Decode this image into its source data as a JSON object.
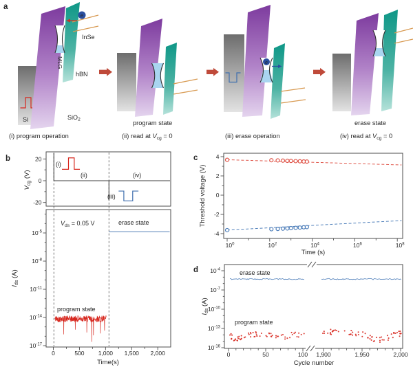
{
  "panel_labels": {
    "a": "a",
    "b": "b",
    "c": "c",
    "d": "d"
  },
  "panel_a": {
    "materials": {
      "si": "Si",
      "sio2_base": "SiO",
      "sio2_sub": "2",
      "mlg": "MLG",
      "hbn": "hBN",
      "inse": "InSe",
      "electron": "e"
    },
    "captions": {
      "i": "(i) program operation",
      "ii_prefix": "(ii) read at ",
      "iii": "(iii) erase operation",
      "iv_prefix": "(iv) read at ",
      "v_symbol": "V",
      "v_subscript": "cg",
      "read_suffix": " = 0"
    },
    "state_labels": {
      "program": "program state",
      "erase": "erase state"
    },
    "colors": {
      "program_red": "#d7261d",
      "erase_blue": "#3f6fae",
      "arrow_red": "#bf4a3a",
      "slab_purple_top": "#7d3b9e",
      "slab_purple_bottom": "#e4d4ee",
      "slab_teal_top": "#0f9787",
      "slab_teal_bottom": "#b5e2da",
      "slab_gray_top": "#6d6d6d",
      "slab_gray_bottom": "#e3e3e3",
      "cone_fill_blue": "#a9d5f0",
      "inse_line_orange": "#d89a52",
      "electron_blue": "#2a4fa0"
    }
  },
  "chart_data": [
    {
      "panel": "b",
      "subplot": "gate_voltage_waveform",
      "type": "line",
      "ylabel": {
        "symbol": "V",
        "subscript": "cg",
        "unit": " (V)"
      },
      "yticks": {
        "values": [
          20,
          0,
          -20
        ],
        "labels": [
          "20",
          "0",
          "-20"
        ],
        "minor": [
          10,
          -10
        ]
      },
      "ylim": [
        -23.5,
        26.5
      ],
      "xlim": [
        -140,
        2255
      ],
      "pulse_labels": {
        "i": "(i)",
        "ii": "(ii)",
        "iii": "(iii)",
        "iv": "(iv)"
      },
      "waveform": {
        "baseline_V": 0,
        "program_pulse": {
          "t_start": 165,
          "t_rise": 290,
          "t_fall": 400,
          "t_end": 508,
          "base_V": 10.5,
          "peak_V": 21,
          "color": "#d7261d"
        },
        "erase_pulse": {
          "t_start": 1250,
          "t_fall": 1350,
          "t_rise": 1520,
          "t_end": 1630,
          "base_V": -9.5,
          "peak_V": -18.5,
          "color": "#3f6fae"
        },
        "step_edges_t": [
          10,
          1065
        ]
      },
      "dashed_guides_t": [
        10,
        1065
      ]
    },
    {
      "panel": "b",
      "subplot": "retention_current",
      "type": "line",
      "ylabel": {
        "symbol": "I",
        "subscript": "ds",
        "unit": " (A)"
      },
      "ytick_exponents": {
        "major": [
          -5,
          -8,
          -11,
          -14,
          -17
        ],
        "minor": [
          -3,
          -4,
          -6,
          -7,
          -9,
          -10,
          -12,
          -13,
          -15,
          -16
        ]
      },
      "xticks": {
        "values": [
          0,
          500,
          1000,
          1500,
          2000
        ],
        "labels": [
          "0",
          "500",
          "1,000",
          "1,500",
          "2,000"
        ],
        "minor_values": [
          250,
          750,
          1250,
          1750
        ]
      },
      "xlabel": "Time(s)",
      "bias_annotation": {
        "symbol": "V",
        "subscript": "ds",
        "text": " = 0.05 V"
      },
      "series": [
        {
          "name": "program state",
          "color": "#d7261d",
          "t_start": 30,
          "t_end": 1015,
          "log10_mean": -14.15,
          "log10_jitter": 0.35,
          "spikes": [
            [
              200,
              -15.8
            ],
            [
              420,
              -15.3
            ],
            [
              640,
              -15.6
            ],
            [
              735,
              -16.6
            ],
            [
              770,
              -15.9
            ],
            [
              900,
              -15.7
            ],
            [
              980,
              -15.4
            ]
          ]
        },
        {
          "name": "erase state",
          "color": "#3f6fae",
          "t_start": 1065,
          "t_end": 2245,
          "log10_level": -4.87
        }
      ]
    },
    {
      "panel": "c",
      "type": "scatter",
      "ylabel": "Threshold voltage (V)",
      "yticks": {
        "values": [
          4,
          2,
          0,
          -2,
          -4
        ],
        "labels": [
          "4",
          "2",
          "0",
          "-2",
          "-4"
        ],
        "minor": [
          3,
          1,
          -1,
          -3
        ]
      },
      "ylim": [
        -4.55,
        4.4
      ],
      "xtick_exponents": {
        "major": [
          0,
          2,
          4,
          6,
          8
        ],
        "minor": [
          1,
          3,
          5,
          7
        ]
      },
      "xlabel": "Time (s)",
      "series": [
        {
          "name": "program state threshold",
          "color": "#e0564a",
          "points_log10t_V": [
            [
              0,
              3.67
            ],
            [
              2.08,
              3.63
            ],
            [
              2.38,
              3.61
            ],
            [
              2.62,
              3.59
            ],
            [
              2.83,
              3.57
            ],
            [
              3.0,
              3.56
            ],
            [
              3.22,
              3.54
            ],
            [
              3.42,
              3.52
            ],
            [
              3.6,
              3.5
            ],
            [
              3.75,
              3.49
            ]
          ],
          "trend_dashed": [
            [
              0,
              3.68
            ],
            [
              8.2,
              3.14
            ]
          ]
        },
        {
          "name": "erase state threshold",
          "color": "#4f7fba",
          "points_log10t_V": [
            [
              0,
              -3.64
            ],
            [
              2.08,
              -3.54
            ],
            [
              2.38,
              -3.51
            ],
            [
              2.62,
              -3.48
            ],
            [
              2.83,
              -3.46
            ],
            [
              3.0,
              -3.43
            ],
            [
              3.22,
              -3.4
            ],
            [
              3.42,
              -3.37
            ],
            [
              3.6,
              -3.34
            ],
            [
              3.75,
              -3.32
            ]
          ],
          "trend_dashed": [
            [
              0,
              -3.63
            ],
            [
              8.2,
              -2.64
            ]
          ]
        }
      ]
    },
    {
      "panel": "d",
      "type": "scatter",
      "ylabel": {
        "symbol": "I",
        "subscript": "ds",
        "unit": " (A)"
      },
      "ytick_exponents": {
        "major": [
          -4,
          -7,
          -10,
          -13,
          -16
        ],
        "minor": [
          -5,
          -6,
          -8,
          -9,
          -11,
          -12,
          -14,
          -15
        ]
      },
      "xlabel": "Cycle number",
      "axis_break": true,
      "segments": [
        {
          "cycle_range": [
            0,
            102
          ],
          "xticks": {
            "values": [
              0,
              50,
              100
            ],
            "labels": [
              "0",
              "50",
              "100"
            ],
            "minor_values": [
              10,
              20,
              30,
              40,
              60,
              70,
              80,
              90
            ]
          }
        },
        {
          "cycle_range": [
            1898,
            2002
          ],
          "xticks": {
            "values": [
              1900,
              1950,
              2000
            ],
            "labels": [
              "1,900",
              "1,950",
              "2,000"
            ],
            "minor_values": [
              1910,
              1920,
              1930,
              1940,
              1960,
              1970,
              1980,
              1990
            ]
          }
        }
      ],
      "series": [
        {
          "name": "erase state",
          "color": "#4f7fba",
          "style": "noisy_line",
          "log10_level": -5.3,
          "log10_jitter": 0.07
        },
        {
          "name": "program state",
          "color": "#d7261d",
          "style": "scatter",
          "log10_jitter": 0.45,
          "mean_profile_segment1": [
            [
              0,
              -13.9
            ],
            [
              8,
              -14.55
            ],
            [
              18,
              -14.35
            ],
            [
              30,
              -14.0
            ],
            [
              42,
              -13.85
            ],
            [
              55,
              -14.05
            ],
            [
              68,
              -14.5
            ],
            [
              78,
              -14.2
            ],
            [
              90,
              -13.95
            ],
            [
              102,
              -14.05
            ]
          ],
          "mean_profile_segment2": [
            [
              1898,
              -13.5
            ],
            [
              1915,
              -13.55
            ],
            [
              1930,
              -13.6
            ],
            [
              1945,
              -13.75
            ],
            [
              1955,
              -14.15
            ],
            [
              1965,
              -14.6
            ],
            [
              1975,
              -14.75
            ],
            [
              1985,
              -14.35
            ],
            [
              1993,
              -14.0
            ],
            [
              2002,
              -13.75
            ]
          ]
        }
      ]
    }
  ]
}
